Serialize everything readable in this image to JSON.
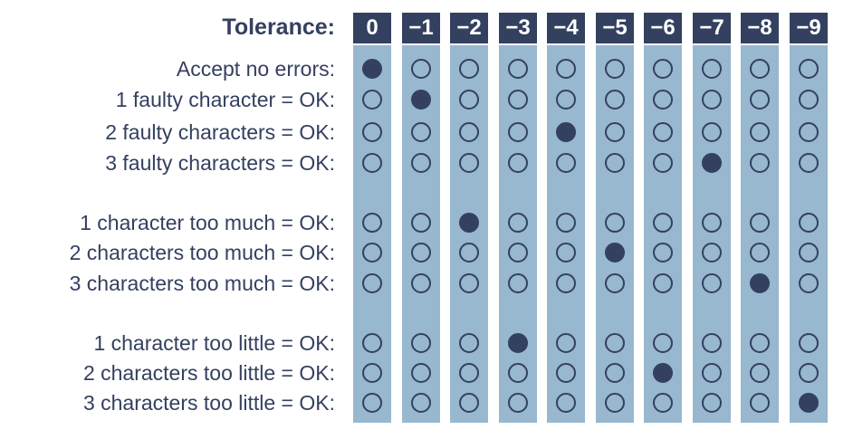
{
  "title": "Tolerance:",
  "columns": [
    "0",
    "−1",
    "−2",
    "−3",
    "−4",
    "−5",
    "−6",
    "−7",
    "−8",
    "−9"
  ],
  "rows": [
    {
      "label": "Accept no errors:",
      "selected": 0
    },
    {
      "label": "1 faulty character = OK:",
      "selected": 1
    },
    {
      "label": "2 faulty characters = OK:",
      "selected": 4
    },
    {
      "label": "3 faulty characters = OK:",
      "selected": 7
    },
    {
      "label": "1 character too much = OK:",
      "selected": 2
    },
    {
      "label": "2 characters too much = OK:",
      "selected": 5
    },
    {
      "label": "3 characters too much = OK:",
      "selected": 8
    },
    {
      "label": "1 character too little = OK:",
      "selected": 3
    },
    {
      "label": "2 characters too little = OK:",
      "selected": 6
    },
    {
      "label": "3 characters too little = OK:",
      "selected": 9
    }
  ],
  "colors": {
    "dark": "#34405f",
    "column": "#97b8cf"
  }
}
